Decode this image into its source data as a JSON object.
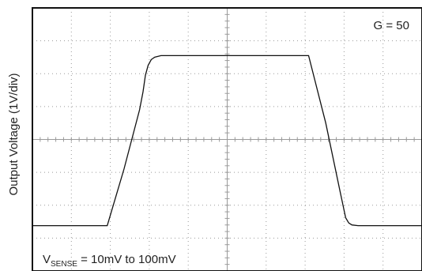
{
  "chart_data": {
    "type": "line",
    "ylabel": "Output Voltage (1V/div)",
    "gain_label": "G = 50",
    "input_label": {
      "main": "V",
      "subscript": "SENSE",
      "rest": " = 10mV to 100mV"
    },
    "grid": true,
    "x_divisions": 10,
    "y_divisions": 8,
    "xlim": [
      0,
      10
    ],
    "ylim": [
      0,
      8
    ],
    "series": [
      {
        "points": [
          [
            0.0,
            1.38
          ],
          [
            1.92,
            1.38
          ],
          [
            2.35,
            3.1
          ],
          [
            2.75,
            4.9
          ],
          [
            2.84,
            5.45
          ],
          [
            2.9,
            5.95
          ],
          [
            2.97,
            6.25
          ],
          [
            3.05,
            6.43
          ],
          [
            3.14,
            6.5
          ],
          [
            3.3,
            6.55
          ],
          [
            7.09,
            6.55
          ],
          [
            7.53,
            4.5
          ],
          [
            7.9,
            2.4
          ],
          [
            8.04,
            1.62
          ],
          [
            8.12,
            1.46
          ],
          [
            8.2,
            1.4
          ],
          [
            8.36,
            1.38
          ],
          [
            10.0,
            1.38
          ]
        ]
      }
    ],
    "colors": {
      "background": "#ffffff",
      "frame": "#111111",
      "grid": "#9a9a9a",
      "trace": "#111111"
    }
  }
}
